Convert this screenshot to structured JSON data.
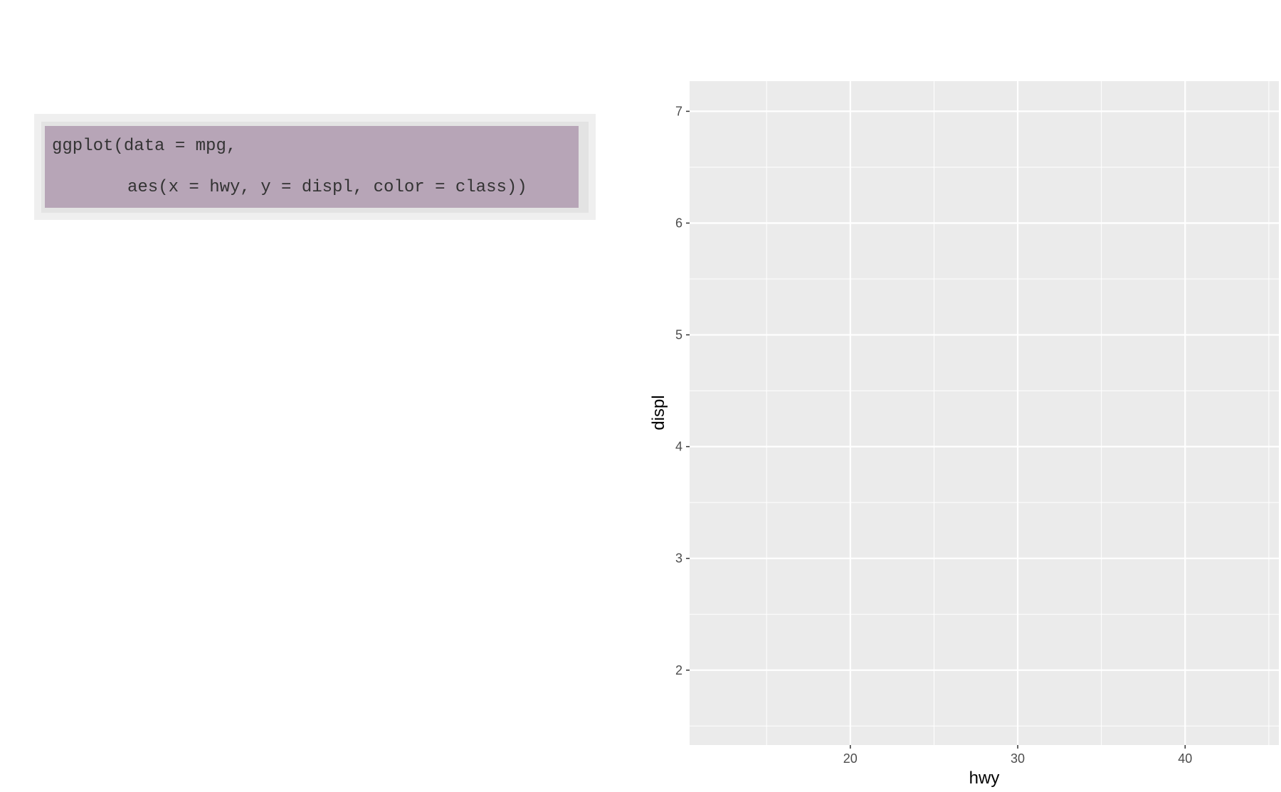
{
  "code": {
    "lines": [
      "ggplot(data = mpg,",
      "aes(x = hwy, y = displ, color = class))"
    ]
  },
  "chart_data": {
    "type": "scatter",
    "x_label": "hwy",
    "y_label": "displ",
    "x": [],
    "y": [],
    "xlim": [
      10.4,
      45.6
    ],
    "ylim": [
      1.33,
      7.27
    ],
    "xticks": [
      20,
      30,
      40
    ],
    "yticks": [
      2,
      3,
      4,
      5,
      6,
      7
    ],
    "x_minor_breaks": [
      15,
      25,
      35,
      45
    ],
    "y_minor_breaks": [
      1.5,
      2.5,
      3.5,
      4.5,
      5.5,
      6.5,
      7.5
    ],
    "grid": true
  }
}
